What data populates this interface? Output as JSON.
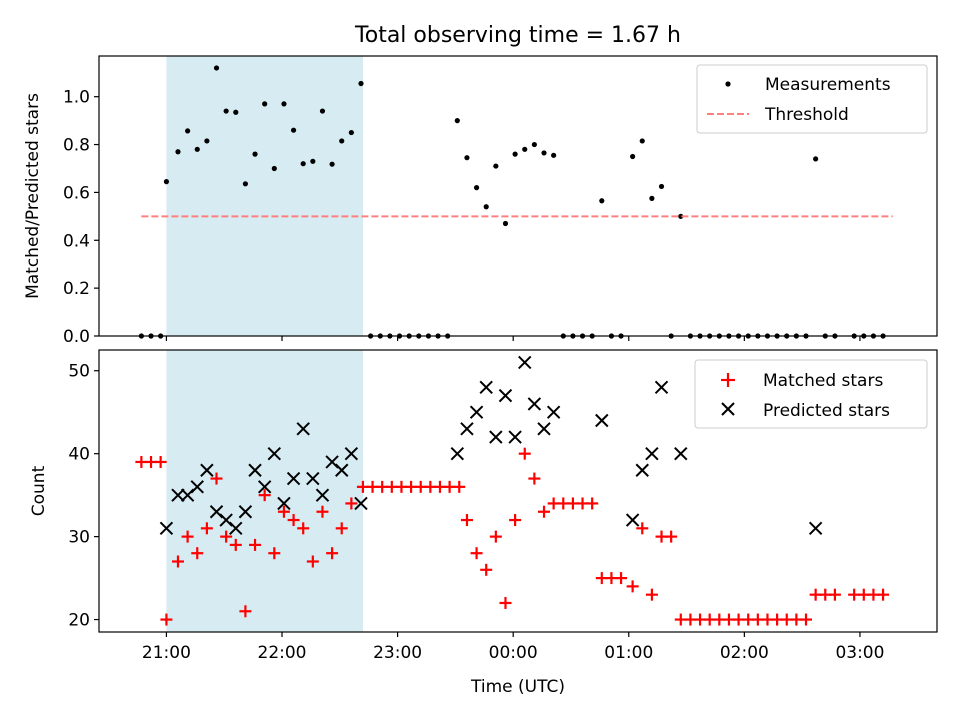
{
  "figure_title": "Total observing time = 1.67 h",
  "colors": {
    "shade": "#add8e6",
    "measurement": "#000000",
    "threshold": "#ff7f7f",
    "matched": "#ff0000",
    "predicted": "#000000"
  },
  "chart_data": [
    {
      "type": "scatter",
      "ylabel": "Matched/Predicted stars",
      "ylim": [
        0,
        1.17
      ],
      "yticks": [
        0.0,
        0.2,
        0.4,
        0.6,
        0.8,
        1.0
      ],
      "ytick_labels": [
        "0.0",
        "0.2",
        "0.4",
        "0.6",
        "0.8",
        "1.0"
      ],
      "xlim": [
        "20:25",
        "03:40"
      ],
      "xticks": [
        "21:00",
        "22:00",
        "23:00",
        "00:00",
        "01:00",
        "02:00",
        "03:00"
      ],
      "grid": false,
      "legend": "top-right",
      "shaded_span": [
        "21:00",
        "22:42"
      ],
      "series": [
        {
          "name": "Measurements",
          "marker": "dot",
          "points": [
            [
              "20:47",
              0
            ],
            [
              "20:52",
              0
            ],
            [
              "20:57",
              0
            ],
            [
              "21:00",
              0.645
            ],
            [
              "21:06",
              0.77
            ],
            [
              "21:11",
              0.857
            ],
            [
              "21:16",
              0.78
            ],
            [
              "21:21",
              0.815
            ],
            [
              "21:26",
              1.12
            ],
            [
              "21:31",
              0.94
            ],
            [
              "21:36",
              0.935
            ],
            [
              "21:41",
              0.636
            ],
            [
              "21:46",
              0.76
            ],
            [
              "21:51",
              0.97
            ],
            [
              "21:56",
              0.7
            ],
            [
              "22:01",
              0.97
            ],
            [
              "22:06",
              0.86
            ],
            [
              "22:11",
              0.72
            ],
            [
              "22:16",
              0.73
            ],
            [
              "22:21",
              0.94
            ],
            [
              "22:26",
              0.718
            ],
            [
              "22:31",
              0.815
            ],
            [
              "22:36",
              0.85
            ],
            [
              "22:41",
              1.055
            ],
            [
              "22:46",
              0
            ],
            [
              "22:51",
              0
            ],
            [
              "22:56",
              0
            ],
            [
              "23:01",
              0
            ],
            [
              "23:06",
              0
            ],
            [
              "23:11",
              0
            ],
            [
              "23:16",
              0
            ],
            [
              "23:21",
              0
            ],
            [
              "23:26",
              0
            ],
            [
              "23:31",
              0.9
            ],
            [
              "23:36",
              0.745
            ],
            [
              "23:41",
              0.62
            ],
            [
              "23:46",
              0.54
            ],
            [
              "23:51",
              0.71
            ],
            [
              "23:56",
              0.47
            ],
            [
              "00:01",
              0.76
            ],
            [
              "00:06",
              0.78
            ],
            [
              "00:11",
              0.8
            ],
            [
              "00:16",
              0.765
            ],
            [
              "00:21",
              0.755
            ],
            [
              "00:26",
              0
            ],
            [
              "00:31",
              0
            ],
            [
              "00:36",
              0
            ],
            [
              "00:41",
              0
            ],
            [
              "00:46",
              0.565
            ],
            [
              "00:51",
              0
            ],
            [
              "00:56",
              0
            ],
            [
              "01:02",
              0.75
            ],
            [
              "01:07",
              0.815
            ],
            [
              "01:12",
              0.575
            ],
            [
              "01:17",
              0.625
            ],
            [
              "01:27",
              0.5
            ],
            [
              "01:22",
              0
            ],
            [
              "01:32",
              0
            ],
            [
              "01:37",
              0
            ],
            [
              "01:42",
              0
            ],
            [
              "01:47",
              0
            ],
            [
              "01:52",
              0
            ],
            [
              "01:57",
              0
            ],
            [
              "02:02",
              0
            ],
            [
              "02:07",
              0
            ],
            [
              "02:12",
              0
            ],
            [
              "02:17",
              0
            ],
            [
              "02:22",
              0
            ],
            [
              "02:27",
              0
            ],
            [
              "02:32",
              0
            ],
            [
              "02:37",
              0.74
            ],
            [
              "02:42",
              0
            ],
            [
              "02:47",
              0
            ],
            [
              "02:57",
              0
            ],
            [
              "03:02",
              0
            ],
            [
              "03:07",
              0
            ],
            [
              "03:12",
              0
            ]
          ]
        },
        {
          "name": "Threshold",
          "marker": "dashed-line",
          "points": [
            [
              "20:47",
              0.5
            ],
            [
              "03:17",
              0.5
            ]
          ]
        }
      ]
    },
    {
      "type": "scatter",
      "xlabel": "Time (UTC)",
      "ylabel": "Count",
      "ylim": [
        18.5,
        52.5
      ],
      "yticks": [
        20,
        30,
        40,
        50
      ],
      "ytick_labels": [
        "20",
        "30",
        "40",
        "50"
      ],
      "xlim": [
        "20:25",
        "03:40"
      ],
      "xticks": [
        "21:00",
        "22:00",
        "23:00",
        "00:00",
        "01:00",
        "02:00",
        "03:00"
      ],
      "xtick_labels": [
        "21:00",
        "22:00",
        "23:00",
        "00:00",
        "01:00",
        "02:00",
        "03:00"
      ],
      "grid": false,
      "legend": "top-right",
      "shaded_span": [
        "21:00",
        "22:42"
      ],
      "series": [
        {
          "name": "Matched stars",
          "marker": "plus",
          "points": [
            [
              "20:47",
              39
            ],
            [
              "20:52",
              39
            ],
            [
              "20:57",
              39
            ],
            [
              "21:00",
              20
            ],
            [
              "21:06",
              27
            ],
            [
              "21:11",
              30
            ],
            [
              "21:16",
              28
            ],
            [
              "21:21",
              31
            ],
            [
              "21:26",
              37
            ],
            [
              "21:31",
              30
            ],
            [
              "21:36",
              29
            ],
            [
              "21:41",
              21
            ],
            [
              "21:46",
              29
            ],
            [
              "21:51",
              35
            ],
            [
              "21:56",
              28
            ],
            [
              "22:01",
              33
            ],
            [
              "22:06",
              32
            ],
            [
              "22:11",
              31
            ],
            [
              "22:16",
              27
            ],
            [
              "22:21",
              33
            ],
            [
              "22:26",
              28
            ],
            [
              "22:31",
              31
            ],
            [
              "22:36",
              34
            ],
            [
              "22:42",
              36
            ],
            [
              "22:47",
              36
            ],
            [
              "22:52",
              36
            ],
            [
              "22:57",
              36
            ],
            [
              "23:02",
              36
            ],
            [
              "23:07",
              36
            ],
            [
              "23:12",
              36
            ],
            [
              "23:17",
              36
            ],
            [
              "23:22",
              36
            ],
            [
              "23:27",
              36
            ],
            [
              "23:32",
              36
            ],
            [
              "23:36",
              32
            ],
            [
              "23:41",
              28
            ],
            [
              "23:46",
              26
            ],
            [
              "23:51",
              30
            ],
            [
              "23:56",
              22
            ],
            [
              "00:01",
              32
            ],
            [
              "00:06",
              40
            ],
            [
              "00:11",
              37
            ],
            [
              "00:16",
              33
            ],
            [
              "00:21",
              34
            ],
            [
              "00:26",
              34
            ],
            [
              "00:31",
              34
            ],
            [
              "00:36",
              34
            ],
            [
              "00:41",
              34
            ],
            [
              "00:46",
              25
            ],
            [
              "00:51",
              25
            ],
            [
              "00:56",
              25
            ],
            [
              "01:02",
              24
            ],
            [
              "01:07",
              31
            ],
            [
              "01:12",
              23
            ],
            [
              "01:17",
              30
            ],
            [
              "01:22",
              30
            ],
            [
              "01:27",
              20
            ],
            [
              "01:32",
              20
            ],
            [
              "01:37",
              20
            ],
            [
              "01:42",
              20
            ],
            [
              "01:47",
              20
            ],
            [
              "01:52",
              20
            ],
            [
              "01:57",
              20
            ],
            [
              "02:02",
              20
            ],
            [
              "02:07",
              20
            ],
            [
              "02:12",
              20
            ],
            [
              "02:17",
              20
            ],
            [
              "02:22",
              20
            ],
            [
              "02:27",
              20
            ],
            [
              "02:32",
              20
            ],
            [
              "02:37",
              23
            ],
            [
              "02:42",
              23
            ],
            [
              "02:47",
              23
            ],
            [
              "02:57",
              23
            ],
            [
              "03:02",
              23
            ],
            [
              "03:07",
              23
            ],
            [
              "03:12",
              23
            ]
          ]
        },
        {
          "name": "Predicted stars",
          "marker": "x",
          "points": [
            [
              "21:00",
              31
            ],
            [
              "21:06",
              35
            ],
            [
              "21:11",
              35
            ],
            [
              "21:16",
              36
            ],
            [
              "21:21",
              38
            ],
            [
              "21:26",
              33
            ],
            [
              "21:31",
              32
            ],
            [
              "21:36",
              31
            ],
            [
              "21:41",
              33
            ],
            [
              "21:46",
              38
            ],
            [
              "21:51",
              36
            ],
            [
              "21:56",
              40
            ],
            [
              "22:01",
              34
            ],
            [
              "22:06",
              37
            ],
            [
              "22:11",
              43
            ],
            [
              "22:16",
              37
            ],
            [
              "22:21",
              35
            ],
            [
              "22:26",
              39
            ],
            [
              "22:31",
              38
            ],
            [
              "22:36",
              40
            ],
            [
              "22:41",
              34
            ],
            [
              "23:31",
              40
            ],
            [
              "23:36",
              43
            ],
            [
              "23:41",
              45
            ],
            [
              "23:46",
              48
            ],
            [
              "23:51",
              42
            ],
            [
              "23:56",
              47
            ],
            [
              "00:01",
              42
            ],
            [
              "00:06",
              51
            ],
            [
              "00:11",
              46
            ],
            [
              "00:16",
              43
            ],
            [
              "00:21",
              45
            ],
            [
              "00:46",
              44
            ],
            [
              "01:02",
              32
            ],
            [
              "01:07",
              38
            ],
            [
              "01:12",
              40
            ],
            [
              "01:17",
              48
            ],
            [
              "01:27",
              40
            ],
            [
              "02:37",
              31
            ]
          ]
        }
      ]
    }
  ]
}
